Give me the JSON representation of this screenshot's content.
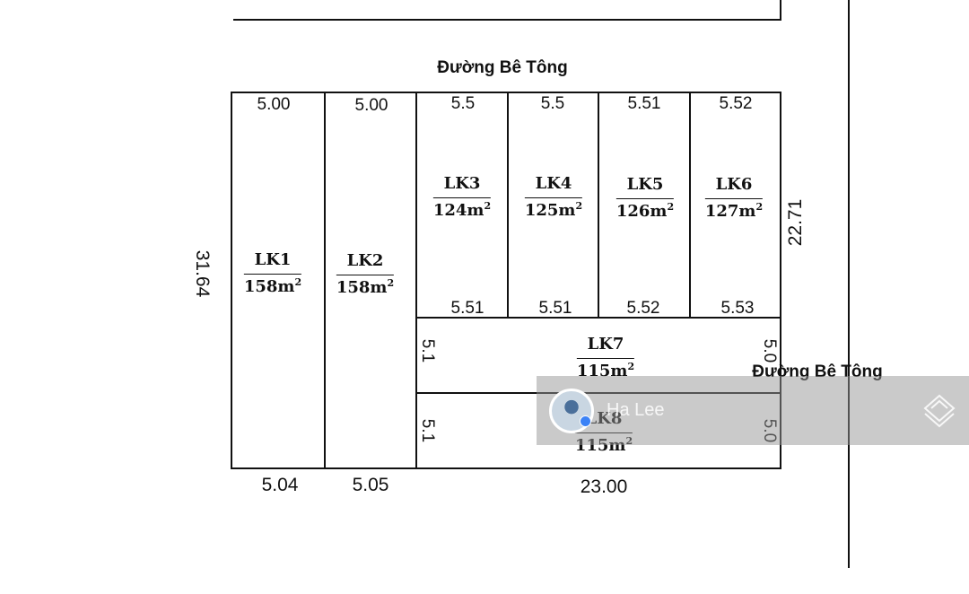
{
  "roads": {
    "top": "Đường Bê Tông",
    "right": "Đường Bê Tông"
  },
  "dimensions": {
    "top": [
      "5.00",
      "5.00",
      "5.5",
      "5.5",
      "5.51",
      "5.52"
    ],
    "middle": [
      "5.51",
      "5.51",
      "5.52",
      "5.53"
    ],
    "bottom": [
      "5.04",
      "5.05",
      "23.00"
    ],
    "left": "31.64",
    "right": "22.71",
    "lk7_left": "5.1",
    "lk7_right": "5.0",
    "lk8_left": "5.1",
    "lk8_right": "5.0"
  },
  "lots": [
    {
      "name": "LK1",
      "area": "158m",
      "unit_exp": "2"
    },
    {
      "name": "LK2",
      "area": "158m",
      "unit_exp": "2"
    },
    {
      "name": "LK3",
      "area": "124m",
      "unit_exp": "2"
    },
    {
      "name": "LK4",
      "area": "125m",
      "unit_exp": "2"
    },
    {
      "name": "LK5",
      "area": "126m",
      "unit_exp": "2"
    },
    {
      "name": "LK6",
      "area": "127m",
      "unit_exp": "2"
    },
    {
      "name": "LK7",
      "area": "115m",
      "unit_exp": "2"
    },
    {
      "name": "LK8",
      "area": "115m",
      "unit_exp": "2"
    }
  ],
  "watermark": {
    "user_name": "Ha Lee",
    "logo_icon": "layers-icon"
  }
}
